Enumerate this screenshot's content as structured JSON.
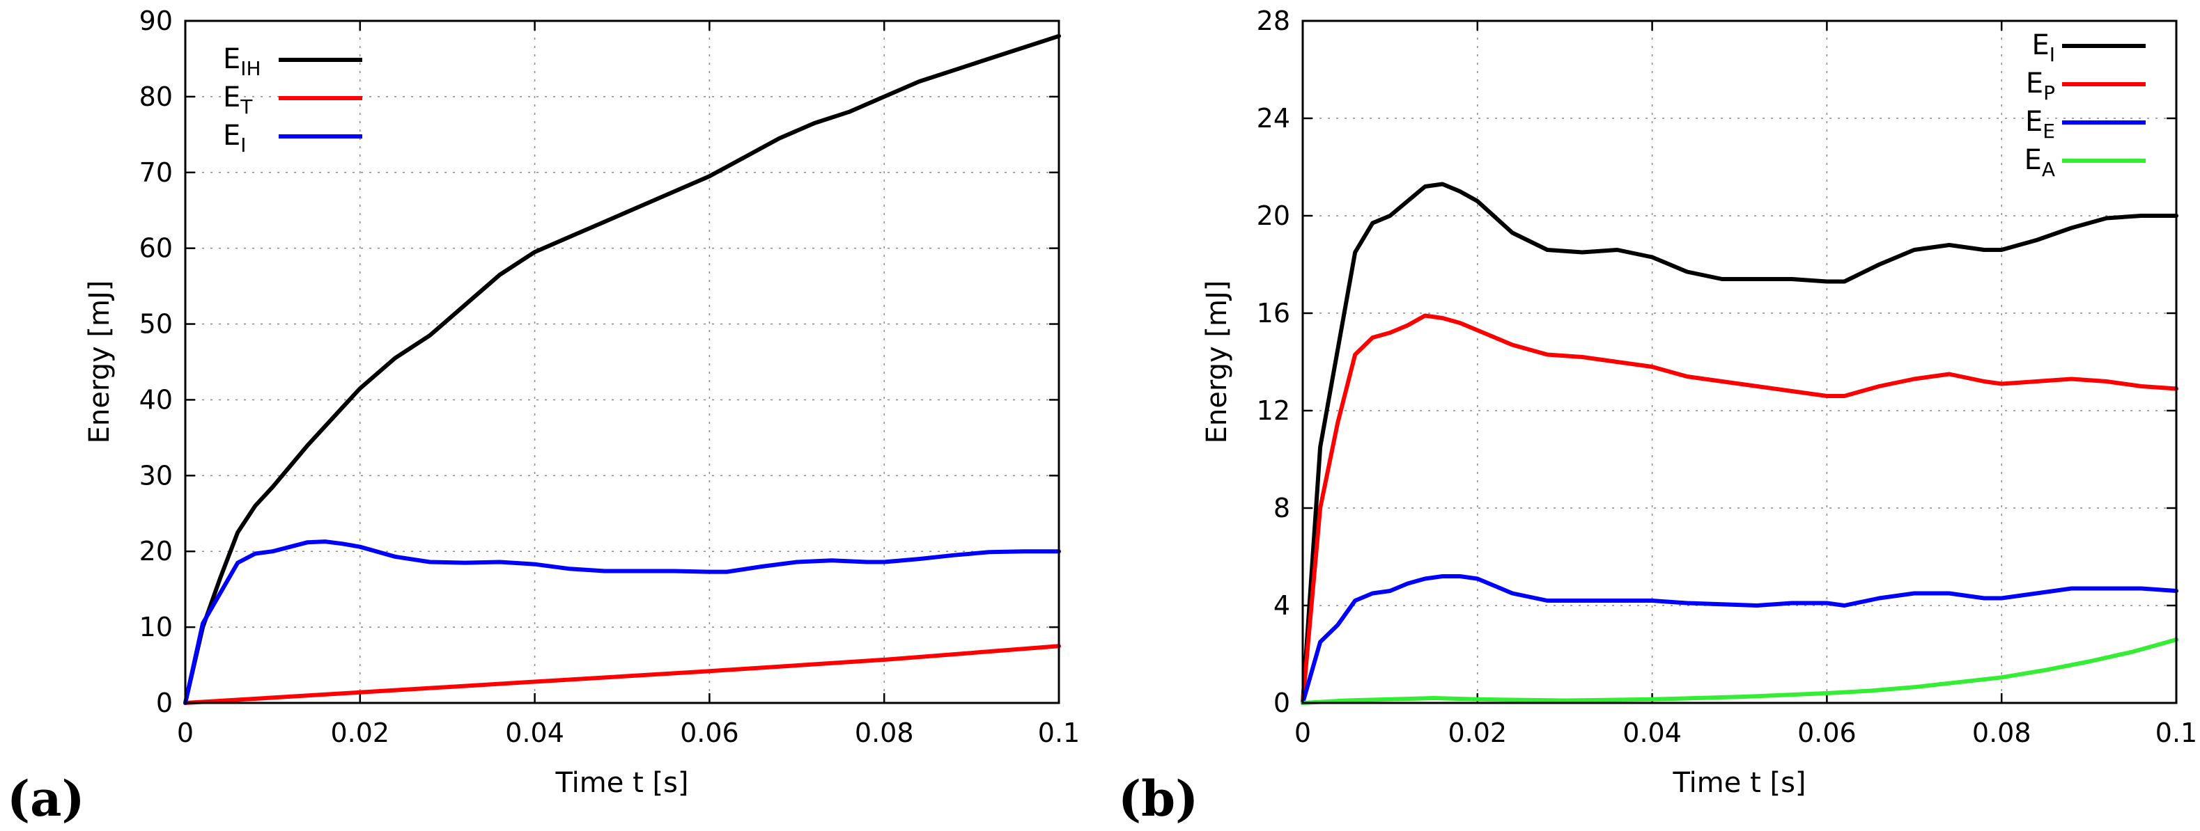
{
  "chart_data": [
    {
      "type": "line",
      "panel_label": "(a)",
      "title": "",
      "xlabel": "Time t [s]",
      "ylabel": "Energy [mJ]",
      "xlim": [
        0,
        0.1
      ],
      "ylim": [
        0,
        90
      ],
      "xticks": [
        0,
        0.02,
        0.04,
        0.06,
        0.08,
        0.1
      ],
      "xtick_labels": [
        "0",
        "0.02",
        "0.04",
        "0.06",
        "0.08",
        "0.1"
      ],
      "yticks": [
        0,
        10,
        20,
        30,
        40,
        50,
        60,
        70,
        80,
        90
      ],
      "ytick_labels": [
        "0",
        "10",
        "20",
        "30",
        "40",
        "50",
        "60",
        "70",
        "80",
        "90"
      ],
      "grid": true,
      "legend_position": "top-left",
      "series": [
        {
          "name": "E_IH",
          "label_main": "E",
          "label_sub": "IH",
          "color": "#000000",
          "x": [
            0,
            0.002,
            0.004,
            0.006,
            0.008,
            0.01,
            0.014,
            0.018,
            0.02,
            0.024,
            0.028,
            0.032,
            0.036,
            0.04,
            0.044,
            0.048,
            0.052,
            0.056,
            0.06,
            0.064,
            0.068,
            0.072,
            0.076,
            0.08,
            0.084,
            0.088,
            0.092,
            0.096,
            0.1
          ],
          "y": [
            0,
            10,
            16.5,
            22.5,
            26,
            28.5,
            34,
            39,
            41.5,
            45.5,
            48.5,
            52.5,
            56.5,
            59.5,
            61.5,
            63.5,
            65.5,
            67.5,
            69.5,
            72,
            74.5,
            76.5,
            78,
            80,
            82,
            83.5,
            85,
            86.5,
            88
          ]
        },
        {
          "name": "E_T",
          "label_main": "E",
          "label_sub": "T",
          "color": "#ff0000",
          "x": [
            0,
            0.02,
            0.04,
            0.06,
            0.08,
            0.1
          ],
          "y": [
            0,
            1.4,
            2.8,
            4.2,
            5.7,
            7.5
          ]
        },
        {
          "name": "E_I",
          "label_main": "E",
          "label_sub": "I",
          "color": "#0000ff",
          "x": [
            0,
            0.002,
            0.004,
            0.006,
            0.008,
            0.01,
            0.012,
            0.014,
            0.016,
            0.018,
            0.02,
            0.024,
            0.028,
            0.032,
            0.036,
            0.04,
            0.044,
            0.048,
            0.052,
            0.056,
            0.06,
            0.062,
            0.066,
            0.07,
            0.074,
            0.078,
            0.08,
            0.084,
            0.088,
            0.092,
            0.096,
            0.1
          ],
          "y": [
            0,
            10.5,
            14.5,
            18.5,
            19.7,
            20,
            20.6,
            21.2,
            21.3,
            21,
            20.6,
            19.3,
            18.6,
            18.5,
            18.6,
            18.3,
            17.7,
            17.4,
            17.4,
            17.4,
            17.3,
            17.3,
            18,
            18.6,
            18.8,
            18.6,
            18.6,
            19,
            19.5,
            19.9,
            20,
            20
          ]
        }
      ]
    },
    {
      "type": "line",
      "panel_label": "(b)",
      "title": "",
      "xlabel": "Time t [s]",
      "ylabel": "Energy [mJ]",
      "xlim": [
        0,
        0.1
      ],
      "ylim": [
        0,
        28
      ],
      "xticks": [
        0,
        0.02,
        0.04,
        0.06,
        0.08,
        0.1
      ],
      "xtick_labels": [
        "0",
        "0.02",
        "0.04",
        "0.06",
        "0.08",
        "0.1"
      ],
      "yticks": [
        0,
        4,
        8,
        12,
        16,
        20,
        24,
        28
      ],
      "ytick_labels": [
        "0",
        "4",
        "8",
        "12",
        "16",
        "20",
        "24",
        "28"
      ],
      "grid": true,
      "legend_position": "top-right",
      "series": [
        {
          "name": "E_I",
          "label_main": "E",
          "label_sub": "I",
          "color": "#000000",
          "x": [
            0,
            0.002,
            0.004,
            0.006,
            0.008,
            0.01,
            0.012,
            0.014,
            0.016,
            0.018,
            0.02,
            0.024,
            0.028,
            0.032,
            0.036,
            0.04,
            0.044,
            0.048,
            0.052,
            0.056,
            0.06,
            0.062,
            0.066,
            0.07,
            0.074,
            0.078,
            0.08,
            0.084,
            0.088,
            0.092,
            0.096,
            0.1
          ],
          "y": [
            0,
            10.5,
            14.5,
            18.5,
            19.7,
            20,
            20.6,
            21.2,
            21.3,
            21,
            20.6,
            19.3,
            18.6,
            18.5,
            18.6,
            18.3,
            17.7,
            17.4,
            17.4,
            17.4,
            17.3,
            17.3,
            18,
            18.6,
            18.8,
            18.6,
            18.6,
            19,
            19.5,
            19.9,
            20,
            20
          ]
        },
        {
          "name": "E_P",
          "label_main": "E",
          "label_sub": "P",
          "color": "#ff0000",
          "x": [
            0,
            0.002,
            0.004,
            0.006,
            0.008,
            0.01,
            0.012,
            0.014,
            0.016,
            0.018,
            0.02,
            0.024,
            0.028,
            0.032,
            0.036,
            0.04,
            0.044,
            0.048,
            0.052,
            0.056,
            0.06,
            0.062,
            0.066,
            0.07,
            0.074,
            0.078,
            0.08,
            0.084,
            0.088,
            0.092,
            0.096,
            0.1
          ],
          "y": [
            0,
            8,
            11.5,
            14.3,
            15,
            15.2,
            15.5,
            15.9,
            15.8,
            15.6,
            15.3,
            14.7,
            14.3,
            14.2,
            14,
            13.8,
            13.4,
            13.2,
            13,
            12.8,
            12.6,
            12.6,
            13,
            13.3,
            13.5,
            13.2,
            13.1,
            13.2,
            13.3,
            13.2,
            13,
            12.9
          ]
        },
        {
          "name": "E_E",
          "label_main": "E",
          "label_sub": "E",
          "color": "#0000ff",
          "x": [
            0,
            0.002,
            0.004,
            0.006,
            0.008,
            0.01,
            0.012,
            0.014,
            0.016,
            0.018,
            0.02,
            0.024,
            0.028,
            0.032,
            0.036,
            0.04,
            0.044,
            0.048,
            0.052,
            0.056,
            0.06,
            0.062,
            0.066,
            0.07,
            0.074,
            0.078,
            0.08,
            0.084,
            0.088,
            0.092,
            0.096,
            0.1
          ],
          "y": [
            0,
            2.5,
            3.2,
            4.2,
            4.5,
            4.6,
            4.9,
            5.1,
            5.2,
            5.2,
            5.1,
            4.5,
            4.2,
            4.2,
            4.2,
            4.2,
            4.1,
            4.05,
            4,
            4.1,
            4.1,
            4.0,
            4.3,
            4.5,
            4.5,
            4.3,
            4.3,
            4.5,
            4.7,
            4.7,
            4.7,
            4.6
          ]
        },
        {
          "name": "E_A",
          "label_main": "E",
          "label_sub": "A",
          "color": "#33ee33",
          "x": [
            0,
            0.005,
            0.01,
            0.015,
            0.02,
            0.03,
            0.04,
            0.05,
            0.06,
            0.065,
            0.07,
            0.075,
            0.08,
            0.085,
            0.09,
            0.095,
            0.1
          ],
          "y": [
            0,
            0.1,
            0.15,
            0.2,
            0.15,
            0.1,
            0.15,
            0.25,
            0.4,
            0.5,
            0.65,
            0.85,
            1.05,
            1.35,
            1.7,
            2.1,
            2.6
          ]
        }
      ]
    }
  ]
}
